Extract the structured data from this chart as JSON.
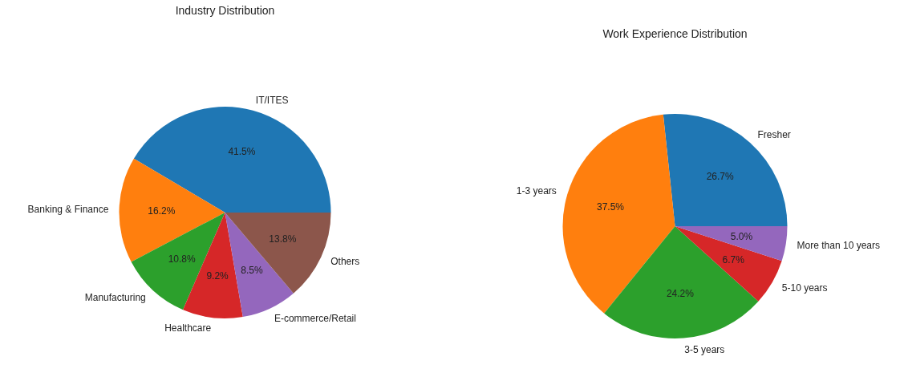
{
  "chart_data": [
    {
      "type": "pie",
      "title": "Industry Distribution",
      "categories": [
        "IT/ITES",
        "Banking & Finance",
        "Manufacturing",
        "Healthcare",
        "E-commerce/Retail",
        "Others"
      ],
      "values": [
        41.5,
        16.2,
        10.8,
        9.2,
        8.5,
        13.8
      ],
      "value_labels": [
        "41.5%",
        "16.2%",
        "10.8%",
        "9.2%",
        "8.5%",
        "13.8%"
      ],
      "colors": [
        "#1f77b4",
        "#ff7f0e",
        "#2ca02c",
        "#d62728",
        "#9467bd",
        "#8c564b"
      ]
    },
    {
      "type": "pie",
      "title": "Work Experience Distribution",
      "categories": [
        "Fresher",
        "1-3 years",
        "3-5 years",
        "5-10 years",
        "More than 10 years"
      ],
      "values": [
        26.7,
        37.5,
        24.2,
        6.7,
        5.0
      ],
      "value_labels": [
        "26.7%",
        "37.5%",
        "24.2%",
        "6.7%",
        "5.0%"
      ],
      "colors": [
        "#1f77b4",
        "#ff7f0e",
        "#2ca02c",
        "#d62728",
        "#9467bd"
      ]
    }
  ]
}
